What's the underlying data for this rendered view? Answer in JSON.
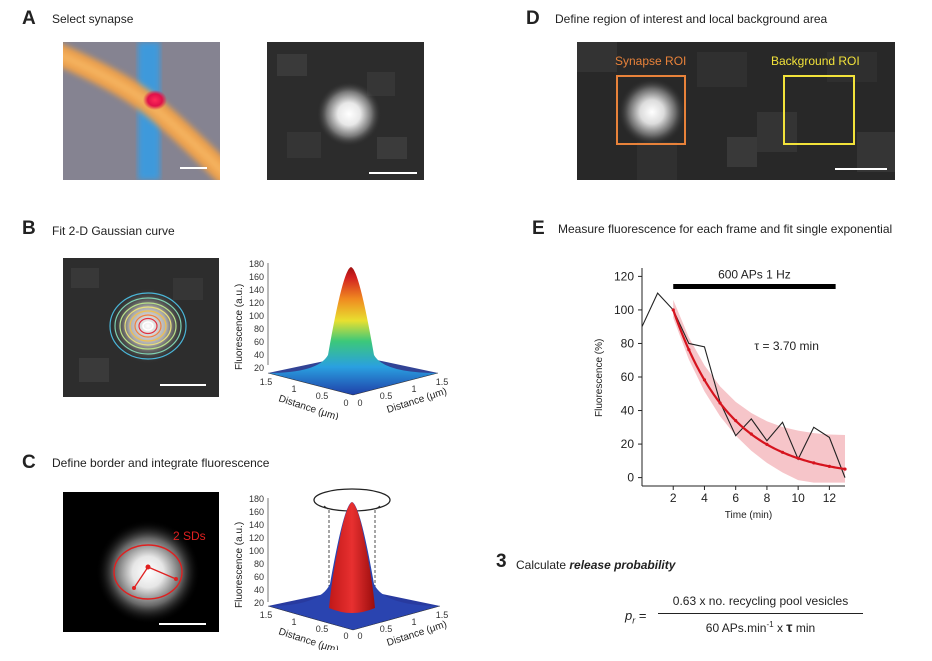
{
  "panels": {
    "A": {
      "label": "A",
      "title": "Select synapse"
    },
    "B": {
      "label": "B",
      "title": "Fit 2-D Gaussian curve"
    },
    "C": {
      "label": "C",
      "title": "Define border and integrate fluorescence",
      "sd_label": "2 SDs"
    },
    "D": {
      "label": "D",
      "title": "Define region of interest and local background area",
      "synapse_roi": "Synapse ROI",
      "background_roi": "Background ROI",
      "colors": {
        "synapse": "#e8823a",
        "background": "#f2e23a"
      }
    },
    "E": {
      "label": "E",
      "title": "Measure fluorescence for each frame and fit single exponential"
    }
  },
  "surface_plots": {
    "z_label": "Fluorescence (a.u.)",
    "z_ticks_B": [
      "180",
      "160",
      "140",
      "120",
      "100",
      "80",
      "60",
      "40",
      "20"
    ],
    "z_ticks_C": [
      "180",
      "160",
      "140",
      "120",
      "100",
      "80",
      "60",
      "40",
      "20"
    ],
    "left_axis_label": "Distance (μm)",
    "right_axis_label": "Distance (μm)",
    "left_ticks": [
      "1.5",
      "1",
      "0.5",
      "0"
    ],
    "right_ticks": [
      "0",
      "0.5",
      "1",
      "1.5"
    ]
  },
  "chart_data": {
    "type": "line",
    "xlabel": "Time (min)",
    "ylabel": "Fluorescence (%)",
    "xlim": [
      0,
      13
    ],
    "ylim": [
      -5,
      125
    ],
    "x_ticks": [
      2,
      4,
      6,
      8,
      10,
      12
    ],
    "y_ticks": [
      0,
      20,
      40,
      60,
      80,
      100,
      120
    ],
    "stim_label": "600 APs 1 Hz",
    "stim_range": [
      2,
      12.4
    ],
    "tau_label": "τ = 3.70 min",
    "tau_min": 3.7,
    "series": [
      {
        "name": "raw",
        "color": "#222222",
        "x": [
          0,
          1,
          2,
          3,
          4,
          5,
          6,
          7,
          8,
          9,
          10,
          11,
          12,
          13
        ],
        "y": [
          90,
          110,
          100,
          80,
          78,
          45,
          25,
          35,
          22,
          33,
          11,
          30,
          24,
          0
        ]
      },
      {
        "name": "exponential fit",
        "color": "#d6141e",
        "x": [
          2,
          3,
          4,
          5,
          6,
          7,
          8,
          9,
          10,
          11,
          12,
          13
        ],
        "y": [
          100,
          76.3,
          58.3,
          44.5,
          34.0,
          26.0,
          19.8,
          15.1,
          11.6,
          8.8,
          6.7,
          5.1
        ]
      }
    ],
    "band_color": "#f4b6bb"
  },
  "section3": {
    "number": "3",
    "title_plain": "Calculate ",
    "title_emph": "release probability",
    "lhs_p": "p",
    "lhs_sub": "r",
    "lhs_eq": "=",
    "numerator": "0.63 x no. recycling pool vesicles",
    "denominator_a": "60 APs.min",
    "denominator_sup": "-1",
    "denominator_b": " x ",
    "denominator_tau": "τ",
    "denominator_c": " min"
  }
}
